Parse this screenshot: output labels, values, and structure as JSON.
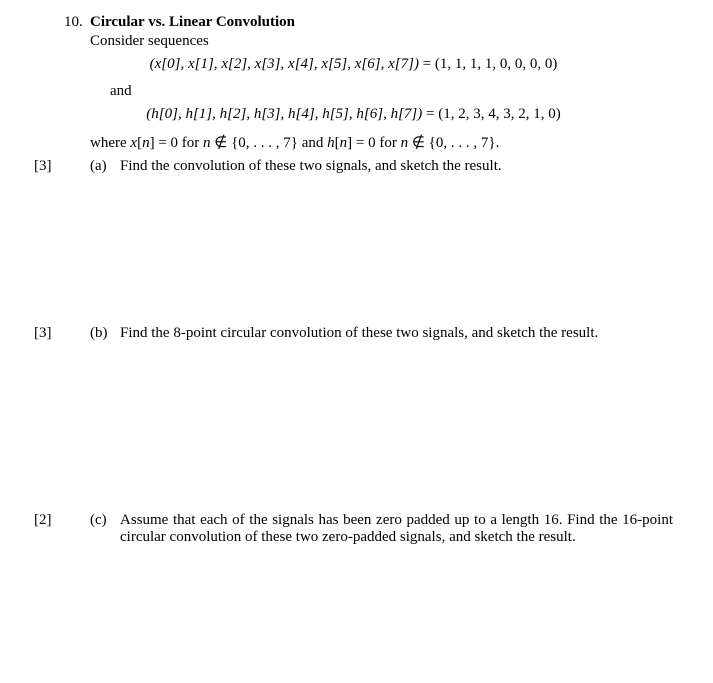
{
  "question": {
    "number": "10.",
    "title": "Circular vs. Linear Convolution",
    "intro": "Consider sequences",
    "eq_x": "(x[0], x[1], x[2], x[3], x[4], x[5], x[6], x[7]) = (1, 1, 1, 1, 0, 0, 0, 0)",
    "and": "and",
    "eq_h": "(h[0], h[1], h[2], h[3], h[4], h[5], h[6], h[7]) = (1, 2, 3, 4, 3, 2, 1, 0)",
    "where": "where x[n] = 0 for n ∉ {0, . . . , 7} and h[n] = 0 for n ∉ {0, . . . , 7}.",
    "parts": {
      "a": {
        "marks": "[3]",
        "label": "(a)",
        "text": "Find the convolution of these two signals, and sketch the result."
      },
      "b": {
        "marks": "[3]",
        "label": "(b)",
        "text": "Find the 8-point circular convolution of these two signals, and sketch the result."
      },
      "c": {
        "marks": "[2]",
        "label": "(c)",
        "text": "Assume that each of the signals has been zero padded up to a length 16.  Find the 16-point circular convolution of these two zero-padded signals, and sketch the result."
      }
    }
  }
}
